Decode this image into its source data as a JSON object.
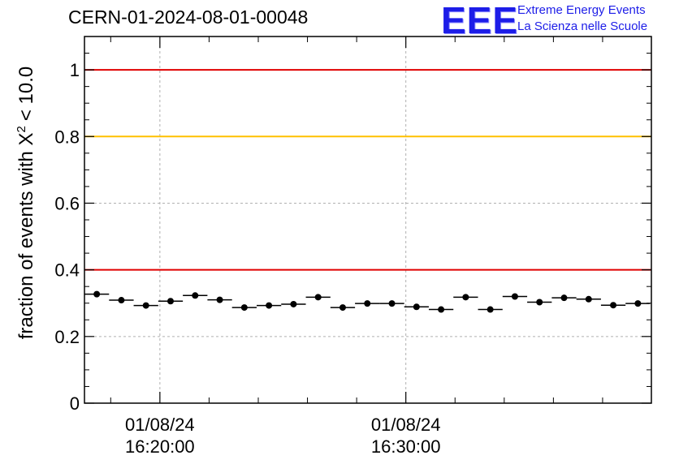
{
  "header": {
    "run_title": "CERN-01-2024-08-01-00048",
    "logo_text": "EEE",
    "org_line1": "Extreme Energy Events",
    "org_line2": "La Scienza nelle Scuole"
  },
  "chart_data": {
    "type": "scatter",
    "title": "",
    "xlabel": "",
    "ylabel": "fraction of events with X",
    "ylabel_sup": "2",
    "ylabel_tail": "< 10.0",
    "ylim": [
      0,
      1.1
    ],
    "yticks": [
      0,
      0.2,
      0.4,
      0.6,
      0.8,
      1
    ],
    "ytick_labels": [
      "0",
      "0.2",
      "0.4",
      "0.6",
      "0.8",
      "1"
    ],
    "x_range": [
      "2024-08-01 16:16:56",
      "2024-08-01 16:39:59"
    ],
    "x_ticks": [
      {
        "time": "2024-08-01 16:20:00",
        "date": "01/08/24",
        "clock": "16:20:00"
      },
      {
        "time": "2024-08-01 16:30:00",
        "date": "01/08/24",
        "clock": "16:30:00"
      }
    ],
    "grid": true,
    "bin_width_seconds": 60,
    "reference_lines": [
      {
        "y": 1.0,
        "color": "#e00000"
      },
      {
        "y": 0.8,
        "color": "#ffc000"
      },
      {
        "y": 0.4,
        "color": "#e00000"
      }
    ],
    "series": [
      {
        "marker_color": "#000000",
        "x": [
          "16:17:26",
          "16:18:26",
          "16:19:26",
          "16:20:26",
          "16:21:26",
          "16:22:26",
          "16:23:26",
          "16:24:26",
          "16:25:26",
          "16:26:26",
          "16:27:26",
          "16:28:26",
          "16:29:26",
          "16:30:26",
          "16:31:26",
          "16:32:26",
          "16:33:26",
          "16:34:26",
          "16:35:26",
          "16:36:26",
          "16:37:26",
          "16:38:26",
          "16:39:26"
        ],
        "y": [
          0.327,
          0.309,
          0.293,
          0.306,
          0.323,
          0.31,
          0.287,
          0.293,
          0.297,
          0.318,
          0.287,
          0.299,
          0.299,
          0.289,
          0.281,
          0.318,
          0.281,
          0.32,
          0.303,
          0.316,
          0.312,
          0.294,
          0.299
        ]
      }
    ]
  }
}
